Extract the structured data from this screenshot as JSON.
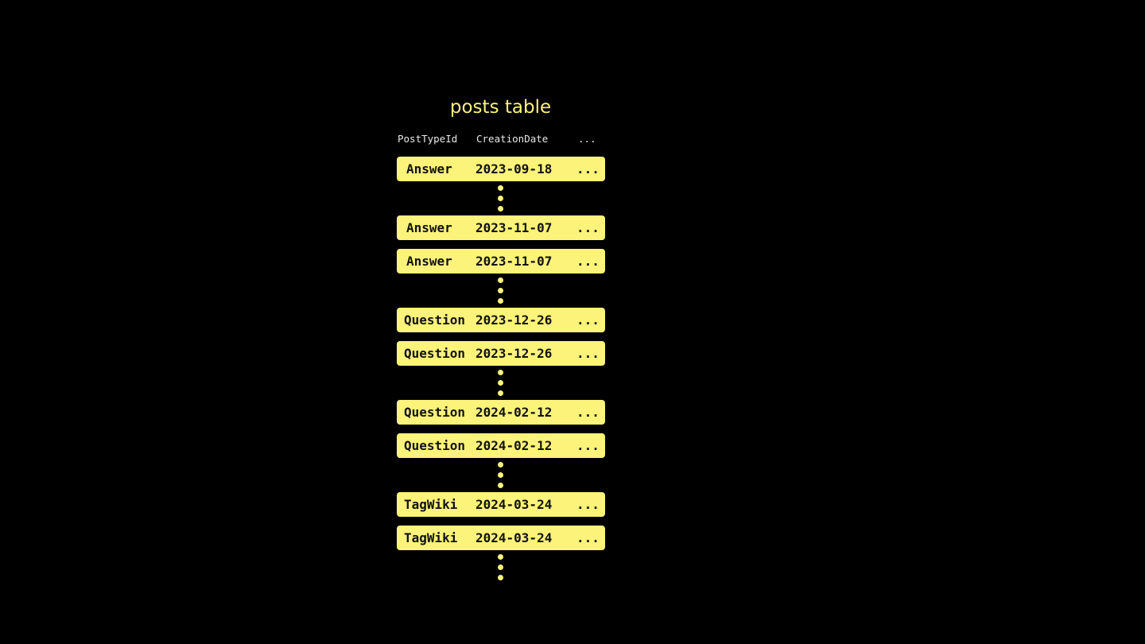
{
  "title": "posts table",
  "columns": [
    "PostTypeId",
    "CreationDate",
    "..."
  ],
  "rows": [
    {
      "type": "Answer",
      "date": "2023-09-18",
      "more": "...",
      "gap_after": true
    },
    {
      "type": "Answer",
      "date": "2023-11-07",
      "more": "...",
      "gap_after": false
    },
    {
      "type": "Answer",
      "date": "2023-11-07",
      "more": "...",
      "gap_after": true
    },
    {
      "type": "Question",
      "date": "2023-12-26",
      "more": "...",
      "gap_after": false
    },
    {
      "type": "Question",
      "date": "2023-12-26",
      "more": "...",
      "gap_after": true
    },
    {
      "type": "Question",
      "date": "2024-02-12",
      "more": "...",
      "gap_after": false
    },
    {
      "type": "Question",
      "date": "2024-02-12",
      "more": "...",
      "gap_after": true
    },
    {
      "type": "TagWiki",
      "date": "2024-03-24",
      "more": "...",
      "gap_after": false
    },
    {
      "type": "TagWiki",
      "date": "2024-03-24",
      "more": "...",
      "gap_after": true
    }
  ],
  "colors": {
    "accent": "#fbf37a",
    "background": "#000000"
  }
}
